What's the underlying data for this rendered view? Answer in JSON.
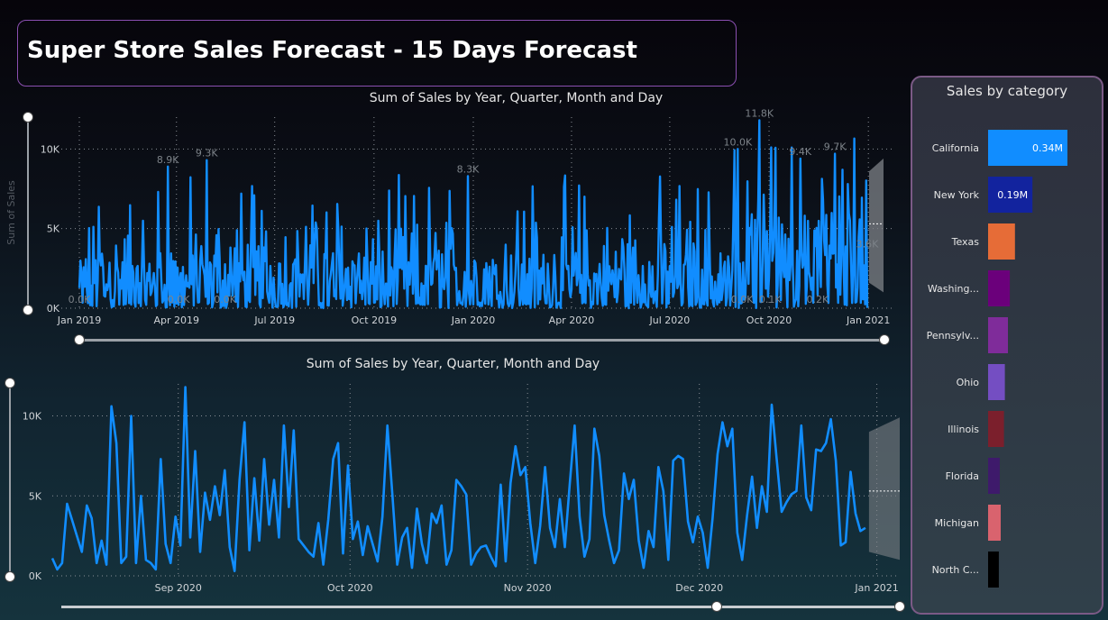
{
  "page_title": "Super Store Sales Forecast - 15 Days Forecast",
  "chart_data": [
    {
      "type": "line",
      "title": "Sum of Sales by Year, Quarter, Month and Day",
      "ylabel": "Sum of Sales",
      "xlabel": "",
      "ylim": [
        0,
        12000
      ],
      "y_ticks": [
        "0K",
        "5K",
        "10K"
      ],
      "y_tick_values": [
        0,
        5000,
        10000
      ],
      "x_ticks": [
        "Jan 2019",
        "Apr 2019",
        "Jul 2019",
        "Oct 2019",
        "Jan 2020",
        "Apr 2020",
        "Jul 2020",
        "Oct 2020",
        "Jan 2021"
      ],
      "x_range_days": [
        0,
        730
      ],
      "data_labels": [
        {
          "text": "8.9K",
          "day": 82,
          "value": 8900
        },
        {
          "text": "9.3K",
          "day": 118,
          "value": 9300
        },
        {
          "text": "8.3K",
          "day": 360,
          "value": 8300
        },
        {
          "text": "10.0K",
          "day": 610,
          "value": 10000
        },
        {
          "text": "11.8K",
          "day": 630,
          "value": 11800
        },
        {
          "text": "9.4K",
          "day": 668,
          "value": 9400
        },
        {
          "text": "9.7K",
          "day": 700,
          "value": 9700
        },
        {
          "text": "0.0K",
          "day": 0,
          "value": 0
        },
        {
          "text": "0.0K",
          "day": 92,
          "value": 0
        },
        {
          "text": "0.0K",
          "day": 135,
          "value": 0
        },
        {
          "text": "0.0K",
          "day": 614,
          "value": 0
        },
        {
          "text": "0.1K",
          "day": 640,
          "value": 100
        },
        {
          "text": "0.2K",
          "day": 684,
          "value": 200
        },
        {
          "text": "3.6K",
          "day": 735,
          "value": 3600
        }
      ],
      "forecast": {
        "days": 15,
        "value": 5300,
        "upper": 9400,
        "lower": 1000
      },
      "grid": true,
      "series": [
        {
          "color": "#118dff"
        }
      ]
    },
    {
      "type": "line",
      "title": "Sum of Sales by Year, Quarter, Month and Day",
      "ylabel": "",
      "xlabel": "",
      "ylim": [
        0,
        12000
      ],
      "y_ticks": [
        "0K",
        "5K",
        "10K"
      ],
      "y_tick_values": [
        0,
        5000,
        10000
      ],
      "x_ticks": [
        "Sep 2020",
        "Oct 2020",
        "Nov 2020",
        "Dec 2020",
        "Jan 2021"
      ],
      "x_tick_dates": [
        "2020-09-01",
        "2020-10-01",
        "2020-11-01",
        "2020-12-01",
        "2021-01-01"
      ],
      "x_start": "2020-08-10",
      "x_end": "2021-01-05",
      "values": [
        1100,
        400,
        800,
        4500,
        3500,
        2500,
        1500,
        4400,
        3600,
        800,
        2200,
        700,
        10600,
        8300,
        800,
        1200,
        10000,
        800,
        5000,
        1000,
        800,
        400,
        7300,
        2000,
        800,
        3700,
        1900,
        11800,
        2400,
        7800,
        1500,
        5200,
        3500,
        5600,
        3800,
        6600,
        1800,
        300,
        6000,
        9600,
        1600,
        6100,
        2200,
        7300,
        3200,
        6000,
        2400,
        9400,
        4300,
        9100,
        2300,
        1900,
        1500,
        1200,
        3300,
        700,
        3500,
        7300,
        8300,
        1400,
        6900,
        2300,
        3400,
        1300,
        3100,
        2000,
        900,
        3700,
        9400,
        5100,
        700,
        2400,
        3000,
        500,
        4200,
        2000,
        800,
        3900,
        3300,
        4400,
        700,
        1600,
        6000,
        5600,
        5100,
        700,
        1400,
        1800,
        1900,
        1200,
        600,
        5700,
        900,
        5800,
        8100,
        6300,
        6800,
        3300,
        800,
        3100,
        6800,
        3000,
        1800,
        4800,
        1800,
        5700,
        9400,
        3700,
        1200,
        2300,
        9200,
        7500,
        3800,
        2200,
        800,
        1600,
        6400,
        4800,
        6000,
        2200,
        500,
        2800,
        1800,
        6800,
        5300,
        1000,
        7200,
        7500,
        7300,
        3400,
        2100,
        3700,
        2700,
        500,
        3600,
        7600,
        9600,
        8100,
        9200,
        2700,
        1000,
        3800,
        6200,
        3000,
        5600,
        4000,
        10700,
        7300,
        4000,
        4600,
        5100,
        5300,
        9400,
        4900,
        4100,
        7900,
        7800,
        8300,
        9800,
        7200,
        1900,
        2100,
        6500,
        3900,
        2800,
        3000
      ],
      "forecast": {
        "days": 15,
        "value": 5300,
        "upper": 9600,
        "lower": 1000
      },
      "grid": true,
      "series": [
        {
          "color": "#118dff"
        }
      ]
    },
    {
      "type": "bar",
      "title": "Sales by category",
      "orientation": "horizontal",
      "categories": [
        "California",
        "New York",
        "Texas",
        "Washing...",
        "Pennsylv...",
        "Ohio",
        "Illinois",
        "Florida",
        "Michigan",
        "North C..."
      ],
      "values": [
        340000,
        190000,
        115000,
        93000,
        85000,
        72000,
        68000,
        50000,
        54000,
        46000
      ],
      "value_labels": [
        "0.34M",
        "0.19M",
        "",
        "",
        "",
        "",
        "",
        "",
        "",
        ""
      ],
      "colors": [
        "#118dff",
        "#12239e",
        "#e66c37",
        "#6b007b",
        "#7f2c9a",
        "#744ec2",
        "#7b1f2c",
        "#3e1a6b",
        "#d9636e",
        "#000000"
      ]
    }
  ]
}
